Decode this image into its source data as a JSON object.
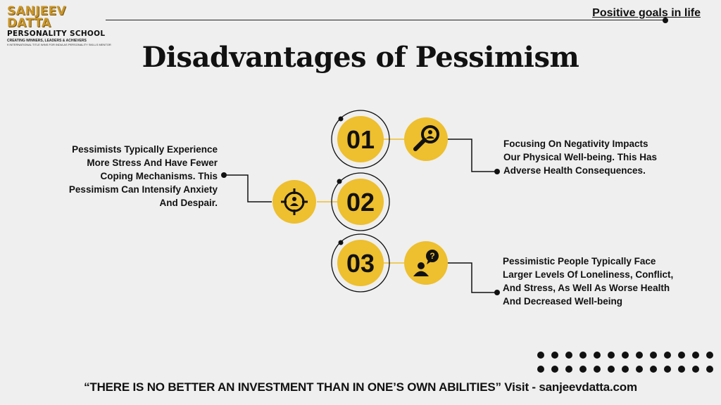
{
  "logo": {
    "brand": "SANJEEV DATTA",
    "sub": "PERSONALITY SCHOOL",
    "line1": "CREATING WINNERS, LEADERS & ACHIEVERS",
    "line2": "9 INTERNATIONAL TITLE WINS FOR INDIA AS PERSONALITY SKILLS MENTOR"
  },
  "header": {
    "link": "Positive goals in life"
  },
  "title": "Disadvantages of Pessimism",
  "accent_color": "#eebf2e",
  "items": [
    {
      "number": "01",
      "icon": "magnifier-person-icon",
      "text": "Focusing On Negativity Impacts Our Physical Well-being. This Has Adverse Health Consequences."
    },
    {
      "number": "02",
      "icon": "target-person-icon",
      "text": "Pessimists Typically Experience More Stress And Have Fewer Coping Mechanisms. This Pessimism Can Intensify Anxiety And Despair."
    },
    {
      "number": "03",
      "icon": "person-question-icon",
      "text": "Pessimistic People Typically Face Larger Levels Of Loneliness, Conflict, And Stress, As Well As Worse Health And Decreased Well-being"
    }
  ],
  "footer": {
    "quote": "“THERE IS NO BETTER AN INVESTMENT THAN IN ONE’S OWN ABILITIES” Visit - sanjeevdatta.com"
  }
}
